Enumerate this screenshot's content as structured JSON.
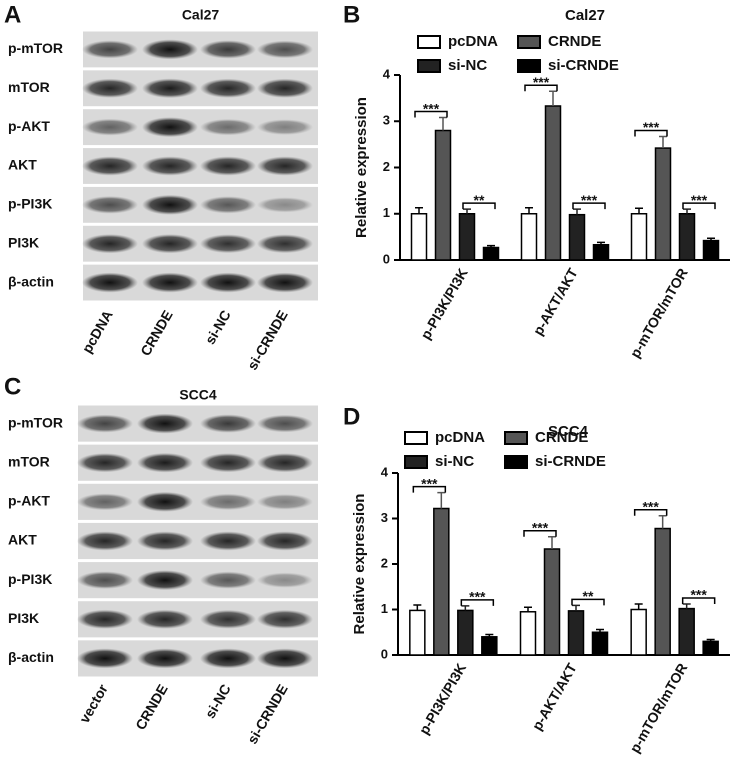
{
  "panel_labels": [
    "A",
    "B",
    "C",
    "D"
  ],
  "blots": [
    {
      "title": "Cal27",
      "rows": [
        "p-mTOR",
        "mTOR",
        "p-AKT",
        "AKT",
        "p-PI3K",
        "PI3K",
        "β-actin"
      ],
      "lanes": [
        "pcDNA",
        "CRNDE",
        "si-NC",
        "si-CRNDE"
      ]
    },
    {
      "title": "SCC4",
      "rows": [
        "p-mTOR",
        "mTOR",
        "p-AKT",
        "AKT",
        "p-PI3K",
        "PI3K",
        "β-actin"
      ],
      "lanes": [
        "vector",
        "CRNDE",
        "si-NC",
        "si-CRNDE"
      ]
    }
  ],
  "chart_data": [
    {
      "type": "bar",
      "title": "Cal27",
      "y_label": "Relative expression",
      "categories": [
        "p-PI3K/PI3K",
        "p-AKT/AKT",
        "p-mTOR/mTOR"
      ],
      "series": [
        {
          "name": "pcDNA",
          "color": "#ffffff",
          "values": [
            1.0,
            1.0,
            1.0
          ],
          "errors": [
            0.13,
            0.13,
            0.12
          ]
        },
        {
          "name": "CRNDE",
          "color": "#555555",
          "values": [
            2.8,
            3.33,
            2.42
          ],
          "errors": [
            0.28,
            0.32,
            0.25
          ]
        },
        {
          "name": "si-NC",
          "color": "#222222",
          "values": [
            1.0,
            0.98,
            1.0
          ],
          "errors": [
            0.1,
            0.12,
            0.1
          ]
        },
        {
          "name": "si-CRNDE",
          "color": "#000000",
          "values": [
            0.27,
            0.33,
            0.42
          ],
          "errors": [
            0.04,
            0.05,
            0.05
          ]
        }
      ],
      "annotations": [
        "***",
        "**",
        "***",
        "***",
        "***",
        "***"
      ],
      "ylim": [
        0,
        4
      ],
      "yticks": [
        0,
        1,
        2,
        3,
        4
      ]
    },
    {
      "type": "bar",
      "title": "SCC4",
      "y_label": "Relative expression",
      "categories": [
        "p-PI3K/PI3K",
        "p-AKT/AKT",
        "p-mTOR/mTOR"
      ],
      "series": [
        {
          "name": "pcDNA",
          "color": "#ffffff",
          "values": [
            0.98,
            0.95,
            1.0
          ],
          "errors": [
            0.12,
            0.1,
            0.12
          ]
        },
        {
          "name": "CRNDE",
          "color": "#555555",
          "values": [
            3.22,
            2.33,
            2.78
          ],
          "errors": [
            0.35,
            0.27,
            0.28
          ]
        },
        {
          "name": "si-NC",
          "color": "#222222",
          "values": [
            0.98,
            0.97,
            1.02
          ],
          "errors": [
            0.1,
            0.12,
            0.1
          ]
        },
        {
          "name": "si-CRNDE",
          "color": "#000000",
          "values": [
            0.4,
            0.5,
            0.3
          ],
          "errors": [
            0.05,
            0.06,
            0.04
          ]
        }
      ],
      "annotations": [
        "***",
        "***",
        "***",
        "**",
        "***",
        "***"
      ],
      "ylim": [
        0,
        4
      ],
      "yticks": [
        0,
        1,
        2,
        3,
        4
      ]
    }
  ]
}
